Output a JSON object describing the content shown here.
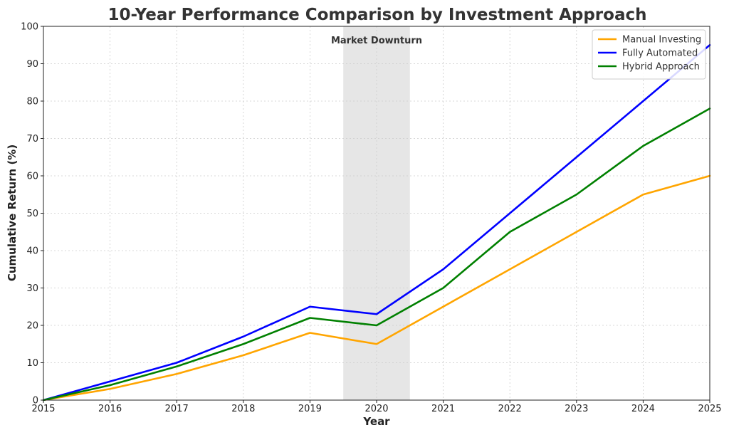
{
  "chart_data": {
    "type": "line",
    "title": "10-Year Performance Comparison by Investment Approach",
    "xlabel": "Year",
    "ylabel": "Cumulative Return (%)",
    "x": [
      2015,
      2016,
      2017,
      2018,
      2019,
      2020,
      2021,
      2022,
      2023,
      2024,
      2025
    ],
    "xlim": [
      2015,
      2025
    ],
    "ylim": [
      0,
      100
    ],
    "yticks": [
      0,
      10,
      20,
      30,
      40,
      50,
      60,
      70,
      80,
      90,
      100
    ],
    "grid": true,
    "legend_position": "top-right",
    "series": [
      {
        "name": "Manual Investing",
        "color": "#FFA500",
        "values": [
          0,
          3,
          7,
          12,
          18,
          15,
          25,
          35,
          45,
          55,
          60
        ]
      },
      {
        "name": "Fully Automated",
        "color": "#0000FF",
        "values": [
          0,
          5,
          10,
          17,
          25,
          23,
          35,
          50,
          65,
          80,
          95
        ]
      },
      {
        "name": "Hybrid Approach",
        "color": "#008000",
        "values": [
          0,
          4,
          9,
          15,
          22,
          20,
          30,
          45,
          55,
          68,
          78
        ]
      }
    ],
    "annotations": [
      {
        "label": "Market Downturn",
        "x_start": 2019.5,
        "x_end": 2020.5,
        "color": "#e6e6e6"
      }
    ]
  }
}
